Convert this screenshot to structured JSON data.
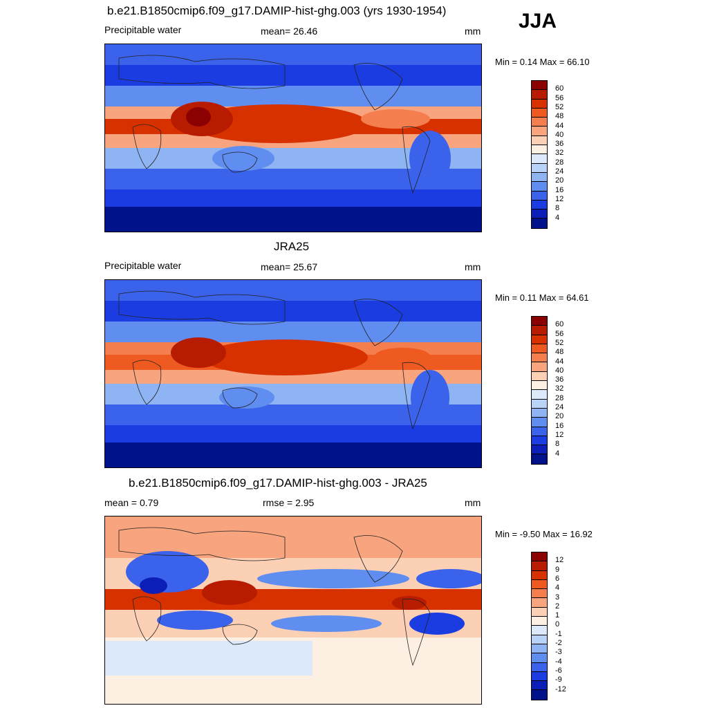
{
  "season": "JJA",
  "panel1": {
    "title": "b.e21.B1850cmip6.f09_g17.DAMIP-hist-ghg.003 (yrs 1930-1954)",
    "left": "Precipitable water",
    "center": "mean=  26.46",
    "unit": "mm",
    "minmax": "Min =   0.14 Max =  66.10"
  },
  "panel2": {
    "title": "JRA25",
    "left": "Precipitable water",
    "center": "mean=  25.67",
    "unit": "mm",
    "minmax": "Min =   0.11 Max =  64.61"
  },
  "panel3": {
    "title": "b.e21.B1850cmip6.f09_g17.DAMIP-hist-ghg.003 - JRA25",
    "left": "mean =   0.79",
    "center": "rmse =   2.95",
    "unit": "mm",
    "minmax": "Min =  -9.50 Max =  16.92"
  },
  "colorbar_abs": {
    "labels": [
      "60",
      "56",
      "52",
      "48",
      "44",
      "40",
      "36",
      "32",
      "28",
      "24",
      "20",
      "16",
      "12",
      "8",
      "4"
    ],
    "colors": [
      "#8b0000",
      "#b71c00",
      "#d83100",
      "#ee5a1f",
      "#f57e4f",
      "#f8a47f",
      "#fbd0b5",
      "#fdf0e2",
      "#dbe9fb",
      "#b8d2f8",
      "#8fb4f3",
      "#5f8ef0",
      "#3a62ea",
      "#1a3ce0",
      "#0b1fb8",
      "#00128a"
    ]
  },
  "colorbar_diff": {
    "labels": [
      "12",
      "9",
      "6",
      "4",
      "3",
      "2",
      "1",
      "0",
      "-1",
      "-2",
      "-3",
      "-4",
      "-6",
      "-9",
      "-12"
    ],
    "colors": [
      "#8b0000",
      "#b71c00",
      "#d83100",
      "#ee5a1f",
      "#f57e4f",
      "#f8a47f",
      "#fbd0b5",
      "#fdf0e2",
      "#dbe9fb",
      "#b8d2f8",
      "#8fb4f3",
      "#5f8ef0",
      "#3a62ea",
      "#1a3ce0",
      "#0b1fb8",
      "#00128a"
    ]
  }
}
